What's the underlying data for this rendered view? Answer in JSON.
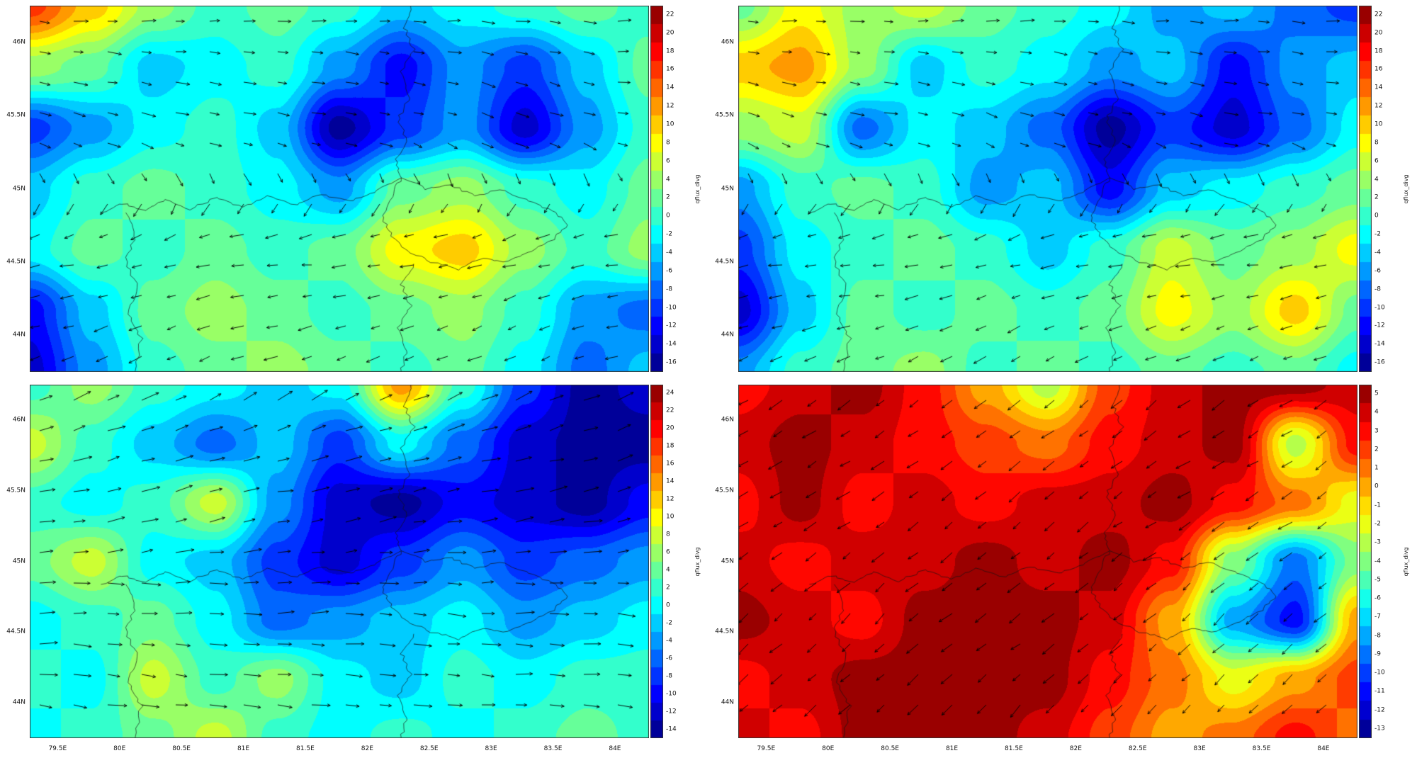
{
  "figure": {
    "colorbar_label": "qflux_divg",
    "y_ticks": [
      "46N",
      "45.5N",
      "45N",
      "44.5N",
      "44N"
    ],
    "x_ticks": [
      "79.5E",
      "80E",
      "80.5E",
      "81E",
      "81.5E",
      "82E",
      "82.5E",
      "83E",
      "83.5E",
      "84E"
    ],
    "map_outline": [
      [
        [
          0.615,
          0.0
        ],
        [
          0.605,
          0.06
        ],
        [
          0.62,
          0.12
        ],
        [
          0.6,
          0.18
        ],
        [
          0.615,
          0.25
        ],
        [
          0.595,
          0.31
        ],
        [
          0.61,
          0.37
        ],
        [
          0.592,
          0.42
        ],
        [
          0.6,
          0.47
        ]
      ],
      [
        [
          0.115,
          0.565
        ],
        [
          0.15,
          0.54
        ],
        [
          0.185,
          0.56
        ],
        [
          0.22,
          0.53
        ],
        [
          0.26,
          0.555
        ],
        [
          0.3,
          0.525
        ],
        [
          0.345,
          0.55
        ],
        [
          0.385,
          0.52
        ],
        [
          0.43,
          0.545
        ],
        [
          0.47,
          0.515
        ],
        [
          0.515,
          0.535
        ],
        [
          0.555,
          0.51
        ],
        [
          0.6,
          0.47
        ]
      ],
      [
        [
          0.6,
          0.47
        ],
        [
          0.64,
          0.5
        ],
        [
          0.68,
          0.49
        ],
        [
          0.72,
          0.52
        ],
        [
          0.76,
          0.5
        ],
        [
          0.8,
          0.53
        ],
        [
          0.845,
          0.56
        ],
        [
          0.87,
          0.6
        ],
        [
          0.845,
          0.64
        ],
        [
          0.81,
          0.67
        ],
        [
          0.77,
          0.7
        ],
        [
          0.73,
          0.69
        ],
        [
          0.69,
          0.72
        ],
        [
          0.65,
          0.7
        ],
        [
          0.61,
          0.67
        ],
        [
          0.585,
          0.63
        ],
        [
          0.57,
          0.58
        ],
        [
          0.585,
          0.52
        ],
        [
          0.6,
          0.47
        ]
      ],
      [
        [
          0.62,
          0.705
        ],
        [
          0.6,
          0.76
        ],
        [
          0.615,
          0.82
        ],
        [
          0.595,
          0.88
        ],
        [
          0.61,
          0.94
        ],
        [
          0.6,
          1.0
        ]
      ],
      [
        [
          0.155,
          0.565
        ],
        [
          0.17,
          0.63
        ],
        [
          0.155,
          0.7
        ],
        [
          0.175,
          0.77
        ],
        [
          0.16,
          0.84
        ],
        [
          0.18,
          0.91
        ],
        [
          0.17,
          1.0
        ]
      ]
    ]
  },
  "chart_data": [
    {
      "name": "panel-top-left",
      "type": "heatmap",
      "subtype": "filled-contour-map-with-wind-vectors",
      "show_x_ticks": false,
      "arrow_scale": 1.0,
      "colorbar": {
        "label": "qflux_divg",
        "vmin": -17,
        "vmax": 23,
        "step": 2,
        "ticks": [
          22,
          20,
          18,
          16,
          14,
          12,
          10,
          8,
          6,
          4,
          2,
          0,
          -2,
          -4,
          -6,
          -8,
          -10,
          -12,
          -14,
          -16
        ]
      },
      "field_grid": [
        [
          16,
          10,
          4,
          0,
          2,
          0,
          -4,
          -2,
          0,
          2,
          0
        ],
        [
          4,
          2,
          -4,
          -2,
          0,
          -6,
          -12,
          -6,
          -10,
          -4,
          2
        ],
        [
          -10,
          -6,
          -2,
          0,
          -4,
          -16,
          -10,
          -6,
          -14,
          -6,
          0
        ],
        [
          -4,
          0,
          2,
          0,
          -2,
          -6,
          2,
          4,
          0,
          -2,
          2
        ],
        [
          -2,
          2,
          0,
          2,
          0,
          2,
          8,
          10,
          4,
          0,
          4
        ],
        [
          -12,
          -4,
          2,
          4,
          2,
          0,
          2,
          4,
          0,
          -6,
          -8
        ],
        [
          -14,
          -6,
          0,
          2,
          4,
          2,
          0,
          2,
          -2,
          -8,
          -4
        ]
      ],
      "flow_deg": [
        [
          -5,
          0,
          -5,
          0,
          -5,
          0
        ],
        [
          -10,
          -15,
          -10,
          -15,
          -20,
          -10
        ],
        [
          -170,
          -165,
          -175,
          -170,
          -165,
          -175
        ],
        [
          -160,
          -155,
          -165,
          -160,
          -155,
          -165
        ]
      ]
    },
    {
      "name": "panel-top-right",
      "type": "heatmap",
      "subtype": "filled-contour-map-with-wind-vectors",
      "show_x_ticks": false,
      "arrow_scale": 1.0,
      "colorbar": {
        "label": "qflux_divg",
        "vmin": -17,
        "vmax": 23,
        "step": 2,
        "ticks": [
          22,
          20,
          18,
          16,
          14,
          12,
          10,
          8,
          6,
          4,
          2,
          0,
          -2,
          -4,
          -6,
          -8,
          -10,
          -12,
          -14,
          -16
        ]
      },
      "field_grid": [
        [
          2,
          8,
          4,
          6,
          2,
          0,
          -2,
          -6,
          -4,
          -8,
          -10
        ],
        [
          10,
          12,
          4,
          -4,
          0,
          -2,
          -6,
          -4,
          -12,
          -6,
          -4
        ],
        [
          4,
          6,
          -8,
          -2,
          -4,
          -8,
          -16,
          -10,
          -14,
          -8,
          -2
        ],
        [
          -6,
          0,
          2,
          0,
          -6,
          -4,
          -12,
          -4,
          -2,
          0,
          2
        ],
        [
          -10,
          -2,
          0,
          2,
          0,
          -4,
          0,
          6,
          2,
          4,
          8
        ],
        [
          -14,
          -4,
          2,
          0,
          2,
          0,
          2,
          8,
          4,
          10,
          2
        ],
        [
          -6,
          0,
          2,
          4,
          0,
          2,
          0,
          2,
          0,
          2,
          -2
        ]
      ],
      "flow_deg": [
        [
          0,
          -5,
          0,
          -5,
          0,
          -5
        ],
        [
          -15,
          -10,
          -20,
          -15,
          -10,
          -15
        ],
        [
          -170,
          -175,
          -165,
          -170,
          -175,
          -165
        ],
        [
          -155,
          -160,
          -150,
          -160,
          -155,
          -160
        ]
      ]
    },
    {
      "name": "panel-bottom-left",
      "type": "heatmap",
      "subtype": "filled-contour-map-with-wind-vectors",
      "show_x_ticks": true,
      "arrow_scale": 1.3,
      "colorbar": {
        "label": "qflux_divg",
        "vmin": -15,
        "vmax": 25,
        "step": 2,
        "ticks": [
          24,
          22,
          20,
          18,
          16,
          14,
          12,
          10,
          8,
          6,
          4,
          2,
          0,
          -2,
          -4,
          -6,
          -8,
          -10,
          -12,
          -14
        ]
      },
      "field_grid": [
        [
          2,
          6,
          2,
          0,
          -2,
          0,
          14,
          2,
          -8,
          -14,
          -12
        ],
        [
          8,
          2,
          -2,
          -6,
          -2,
          -8,
          0,
          -6,
          -12,
          -14,
          -14
        ],
        [
          2,
          0,
          2,
          8,
          -4,
          -12,
          -14,
          -10,
          -12,
          -14,
          -10
        ],
        [
          4,
          8,
          0,
          -2,
          -8,
          -12,
          -8,
          -4,
          -8,
          -6,
          -4
        ],
        [
          0,
          2,
          4,
          0,
          -6,
          -4,
          -2,
          0,
          -4,
          -2,
          0
        ],
        [
          2,
          0,
          8,
          2,
          6,
          0,
          -2,
          2,
          0,
          2,
          2
        ],
        [
          0,
          2,
          4,
          8,
          2,
          0,
          2,
          0,
          2,
          4,
          2
        ]
      ],
      "flow_deg": [
        [
          25,
          20,
          28,
          22,
          25,
          20
        ],
        [
          12,
          15,
          8,
          12,
          10,
          15
        ],
        [
          0,
          -5,
          2,
          -4,
          0,
          -5
        ],
        [
          -8,
          -5,
          -10,
          -6,
          -8,
          -5
        ]
      ]
    },
    {
      "name": "panel-bottom-right",
      "type": "heatmap",
      "subtype": "filled-contour-map-with-wind-vectors",
      "show_x_ticks": true,
      "arrow_scale": 1.1,
      "colorbar": {
        "label": "qflux_divg",
        "vmin": -13.5,
        "vmax": 5.5,
        "step": 1,
        "ticks": [
          5,
          4,
          3,
          2,
          1,
          0,
          -1,
          -2,
          -3,
          -4,
          -5,
          -6,
          -7,
          -8,
          -9,
          -10,
          -11,
          -12,
          -13
        ]
      },
      "field_grid": [
        [
          3,
          4,
          5,
          3,
          0,
          -3,
          2,
          4,
          5,
          5,
          4
        ],
        [
          4,
          5,
          4,
          3,
          2,
          1,
          3,
          4,
          5,
          -3,
          3
        ],
        [
          3,
          5,
          3,
          4,
          3,
          4,
          4,
          5,
          3,
          1,
          -2
        ],
        [
          4,
          3,
          4,
          4,
          5,
          4,
          5,
          3,
          -4,
          -9,
          -4
        ],
        [
          5,
          4,
          3,
          5,
          5,
          5,
          4,
          0,
          -8,
          -11,
          0
        ],
        [
          3,
          4,
          5,
          5,
          5,
          5,
          3,
          1,
          -2,
          0,
          2
        ],
        [
          4,
          3,
          5,
          5,
          5,
          4,
          2,
          0,
          1,
          3,
          1
        ]
      ],
      "flow_deg": [
        [
          -150,
          -145,
          -150,
          -140,
          -145,
          -150
        ],
        [
          -145,
          -150,
          -140,
          -145,
          -150,
          -145
        ],
        [
          -140,
          -135,
          -145,
          -140,
          -135,
          -140
        ],
        [
          -135,
          -140,
          -130,
          -135,
          -140,
          -135
        ]
      ]
    }
  ]
}
